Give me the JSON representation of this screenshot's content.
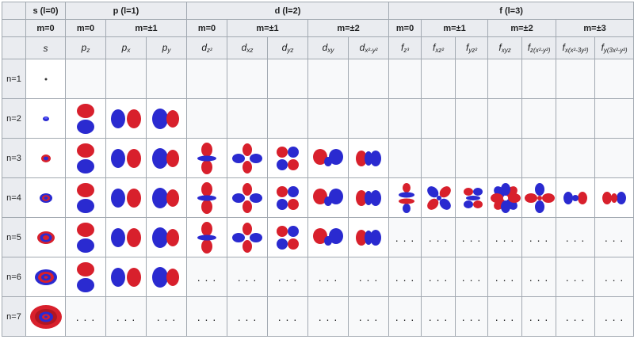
{
  "header": {
    "col0": "",
    "s": "s (l=0)",
    "p": "p (l=1)",
    "d": "d (l=2)",
    "f": "f (l=3)"
  },
  "m_row": {
    "col0": "",
    "s_m0": "m=0",
    "p_m0": "m=0",
    "p_m1": "m=±1",
    "d_m0": "m=0",
    "d_m1": "m=±1",
    "d_m2": "m=±2",
    "f_m0": "m=0",
    "f_m1": "m=±1",
    "f_m2": "m=±2",
    "f_m3": "m=±3"
  },
  "orbitals": [
    {
      "base": "s",
      "sub": ""
    },
    {
      "base": "p",
      "sub": "z"
    },
    {
      "base": "p",
      "sub": "x"
    },
    {
      "base": "p",
      "sub": "y"
    },
    {
      "base": "d",
      "sub": "z²"
    },
    {
      "base": "d",
      "sub": "xz"
    },
    {
      "base": "d",
      "sub": "yz"
    },
    {
      "base": "d",
      "sub": "xy"
    },
    {
      "base": "d",
      "sub": "x²-y²"
    },
    {
      "base": "f",
      "sub": "z³"
    },
    {
      "base": "f",
      "sub": "xz²"
    },
    {
      "base": "f",
      "sub": "yz²"
    },
    {
      "base": "f",
      "sub": "xyz"
    },
    {
      "base": "f",
      "sub": "z(x²-y²)"
    },
    {
      "base": "f",
      "sub": "x(x²-3y²)"
    },
    {
      "base": "f",
      "sub": "y(3x²-y²)"
    }
  ],
  "rows": [
    {
      "label": "n=1",
      "cells": [
        "s1",
        "b",
        "b",
        "b",
        "b",
        "b",
        "b",
        "b",
        "b",
        "b",
        "b",
        "b",
        "b",
        "b",
        "b",
        "b"
      ]
    },
    {
      "label": "n=2",
      "cells": [
        "s2",
        "pz",
        "px",
        "py",
        "b",
        "b",
        "b",
        "b",
        "b",
        "b",
        "b",
        "b",
        "b",
        "b",
        "b",
        "b"
      ]
    },
    {
      "label": "n=3",
      "cells": [
        "s3",
        "pz",
        "px",
        "py",
        "dz2",
        "dxz",
        "dyz",
        "dxy",
        "dx2",
        "b",
        "b",
        "b",
        "b",
        "b",
        "b",
        "b"
      ]
    },
    {
      "label": "n=4",
      "cells": [
        "s4",
        "pz",
        "px",
        "py",
        "dz2",
        "dxz",
        "dyz",
        "dxy",
        "dx2",
        "fz3",
        "fxz2",
        "fyz2",
        "fxyz",
        "fzx",
        "fxx",
        "fyx"
      ]
    },
    {
      "label": "n=5",
      "cells": [
        "s5",
        "pz",
        "px",
        "py",
        "dz2",
        "dxz",
        "dyz",
        "dxy",
        "dx2",
        "…",
        "…",
        "…",
        "…",
        "…",
        "…",
        "…"
      ]
    },
    {
      "label": "n=6",
      "cells": [
        "s6",
        "pz",
        "px",
        "py",
        "…",
        "…",
        "…",
        "…",
        "…",
        "…",
        "…",
        "…",
        "…",
        "…",
        "…",
        "…"
      ]
    },
    {
      "label": "n=7",
      "cells": [
        "s7",
        "…",
        "…",
        "…",
        "…",
        "…",
        "…",
        "…",
        "…",
        "…",
        "…",
        "…",
        "…",
        "…",
        "…",
        "…"
      ]
    }
  ],
  "dots_text": ". . .",
  "colors": {
    "positive": "#d8202c",
    "negative": "#2a2ad0",
    "header_bg": "#eaecf0",
    "border": "#a2a9b1"
  }
}
